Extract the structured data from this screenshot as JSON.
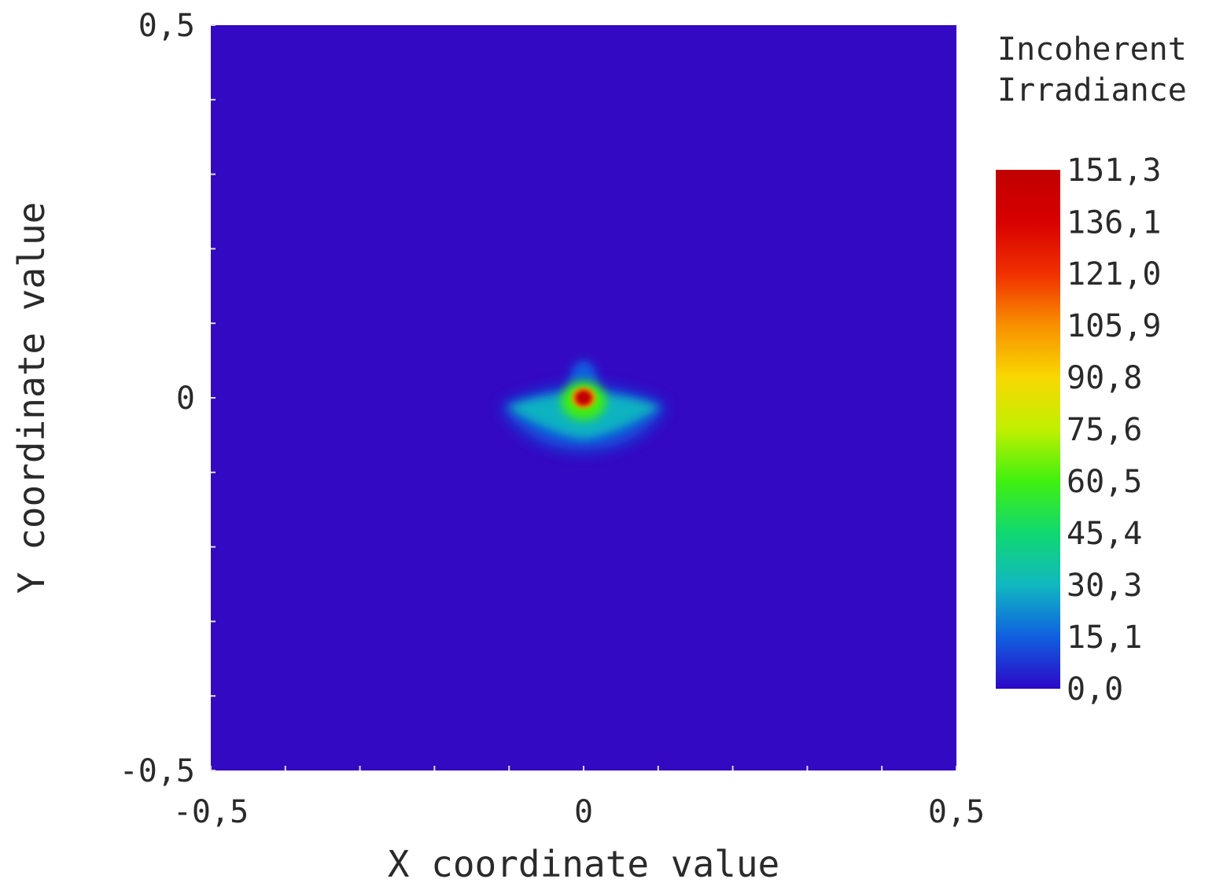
{
  "chart_data": {
    "type": "heatmap",
    "title": "",
    "xlabel": "X coordinate value",
    "ylabel": "Y coordinate value",
    "xlim": [
      -0.5,
      0.5
    ],
    "ylim": [
      -0.5,
      0.5
    ],
    "x_ticks": [
      {
        "value": -0.5,
        "label": "-0,5"
      },
      {
        "value": 0,
        "label": "0"
      },
      {
        "value": 0.5,
        "label": "0,5"
      }
    ],
    "y_ticks": [
      {
        "value": 0.5,
        "label": "0,5"
      },
      {
        "value": 0,
        "label": "0"
      },
      {
        "value": -0.5,
        "label": "-0,5"
      }
    ],
    "grid": false,
    "background_color": "#3309c2",
    "colorbar": {
      "title_lines": [
        "Incoherent",
        "Irradiance"
      ],
      "min": 0.0,
      "max": 151.3,
      "tick_labels": [
        "151,3",
        "136,1",
        "121,0",
        "105,9",
        "90,8",
        "75,6",
        "60,5",
        "45,4",
        "30,3",
        "15,1",
        "0,0"
      ],
      "tick_values": [
        151.3,
        136.1,
        121.0,
        105.9,
        90.8,
        75.6,
        60.5,
        45.4,
        30.3,
        15.1,
        0.0
      ],
      "colormap": [
        "#2c08c8",
        "#1060e0",
        "#10b8c0",
        "#10d870",
        "#40f010",
        "#c0f000",
        "#f8d800",
        "#f89000",
        "#f03000",
        "#d80000",
        "#c00000"
      ]
    },
    "features": [
      {
        "name": "peak",
        "x": 0.0,
        "y": 0.0,
        "value": 151.3
      },
      {
        "name": "wing-left-tip",
        "x": -0.11,
        "y": -0.012,
        "value": 20
      },
      {
        "name": "wing-right-tip",
        "x": 0.11,
        "y": -0.012,
        "value": 20
      },
      {
        "name": "upper-lobe-top",
        "x": 0.0,
        "y": 0.045,
        "value": 15
      },
      {
        "name": "lower-lobe-bottom",
        "x": 0.0,
        "y": -0.07,
        "value": 10
      }
    ]
  }
}
